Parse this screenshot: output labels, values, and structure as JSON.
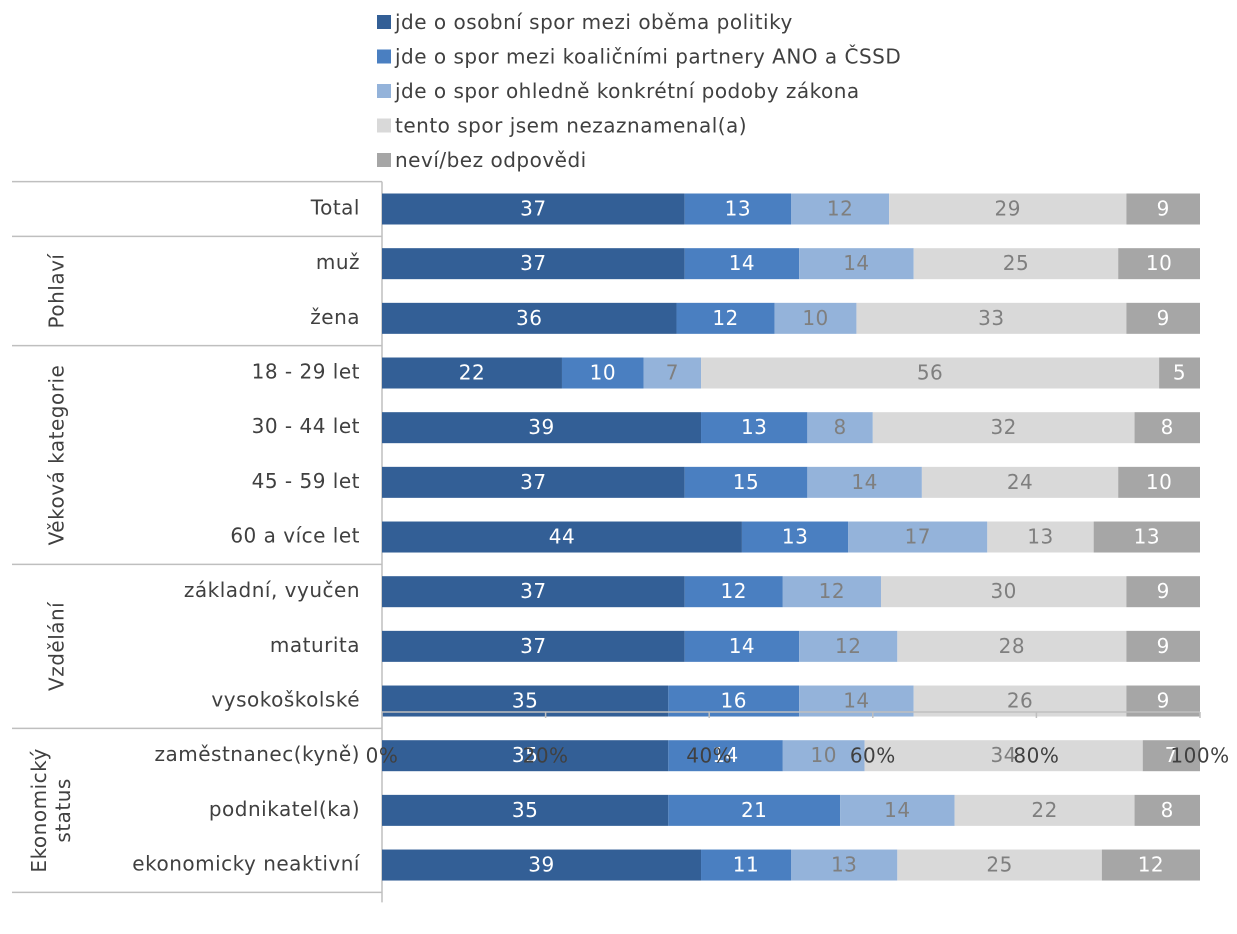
{
  "chart_data": {
    "type": "bar",
    "orientation": "horizontal",
    "stacked": "percent",
    "xlim": [
      0,
      100
    ],
    "x_ticks": [
      "0%",
      "20%",
      "40%",
      "60%",
      "80%",
      "100%"
    ],
    "legend_position": "top",
    "series": [
      {
        "name": "jde o osobní spor mezi oběma politiky",
        "color": "#335f96",
        "label_color": "#ffffff",
        "values": [
          37,
          37,
          36,
          22,
          39,
          37,
          44,
          37,
          37,
          35,
          35,
          35,
          39
        ]
      },
      {
        "name": "jde o spor mezi koaličními partnery ANO a ČSSD",
        "color": "#4a7fc1",
        "label_color": "#ffffff",
        "values": [
          13,
          14,
          12,
          10,
          13,
          15,
          13,
          12,
          14,
          16,
          14,
          21,
          11
        ]
      },
      {
        "name": "jde o spor ohledně konkrétní podoby zákona",
        "color": "#94b3da",
        "label_color": "#7f7f7f",
        "values": [
          12,
          14,
          10,
          7,
          8,
          14,
          17,
          12,
          12,
          14,
          10,
          14,
          13
        ]
      },
      {
        "name": "tento spor jsem nezaznamenal(a)",
        "color": "#d9d9d9",
        "label_color": "#7f7f7f",
        "values": [
          29,
          25,
          33,
          56,
          32,
          24,
          13,
          30,
          28,
          26,
          34,
          22,
          25
        ]
      },
      {
        "name": "neví/bez odpovědi",
        "color": "#a6a6a6",
        "label_color": "#ffffff",
        "values": [
          9,
          10,
          9,
          5,
          8,
          10,
          13,
          9,
          9,
          9,
          7,
          8,
          12
        ]
      }
    ],
    "categories": [
      "Total",
      "muž",
      "žena",
      "18 - 29 let",
      "30 - 44 let",
      "45 - 59 let",
      "60 a více let",
      "základní, vyučen",
      "maturita",
      "vysokoškolské",
      "zaměstnanec(kyně)",
      "podnikatel(ka)",
      "ekonomicky neaktivní"
    ],
    "groups": [
      {
        "label": [
          ""
        ],
        "start": 0,
        "end": 0
      },
      {
        "label": [
          "Pohlaví"
        ],
        "start": 1,
        "end": 2
      },
      {
        "label": [
          "Věková kategorie"
        ],
        "start": 3,
        "end": 6
      },
      {
        "label": [
          "Vzdělání"
        ],
        "start": 7,
        "end": 9
      },
      {
        "label": [
          "Ekonomický",
          "status"
        ],
        "start": 10,
        "end": 12
      }
    ]
  }
}
